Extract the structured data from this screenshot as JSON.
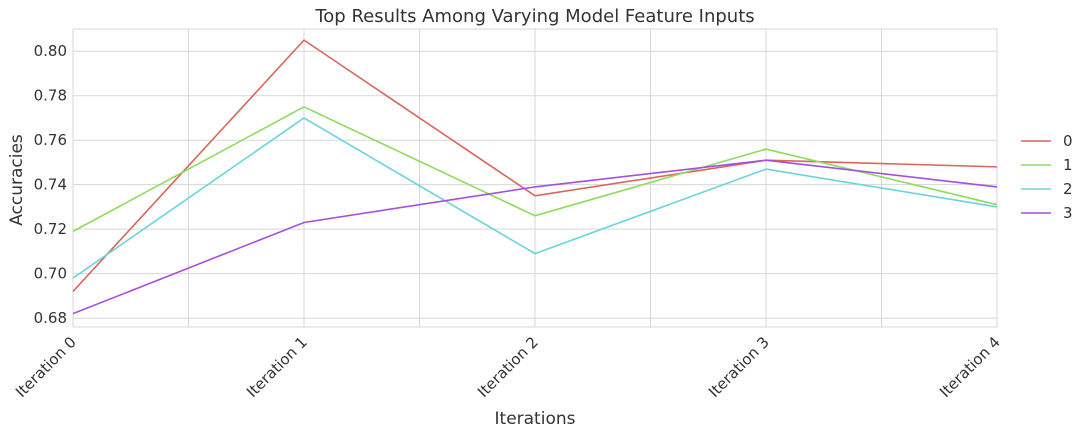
{
  "chart_data": {
    "type": "line",
    "title": "Top Results Among Varying Model Feature Inputs",
    "xlabel": "Iterations",
    "ylabel": "Accuracies",
    "categories": [
      "Iteration 0",
      "Iteration 1",
      "Iteration 2",
      "Iteration 3",
      "Iteration 4"
    ],
    "ylim": [
      0.676,
      0.81
    ],
    "yticks": [
      0.68,
      0.7,
      0.72,
      0.74,
      0.76,
      0.78,
      0.8
    ],
    "ytick_labels": [
      "0.68",
      "0.70",
      "0.72",
      "0.74",
      "0.76",
      "0.78",
      "0.80"
    ],
    "grid": true,
    "legend_position": "right",
    "series": [
      {
        "name": "0",
        "color": "#d9665b",
        "values": [
          0.692,
          0.805,
          0.735,
          0.751,
          0.748
        ]
      },
      {
        "name": "1",
        "color": "#8cdc5a",
        "values": [
          0.719,
          0.775,
          0.726,
          0.756,
          0.731
        ]
      },
      {
        "name": "2",
        "color": "#6bd3dc",
        "values": [
          0.698,
          0.77,
          0.709,
          0.747,
          0.73
        ]
      },
      {
        "name": "3",
        "color": "#a44fe0",
        "values": [
          0.682,
          0.723,
          0.739,
          0.751,
          0.739
        ]
      }
    ]
  }
}
